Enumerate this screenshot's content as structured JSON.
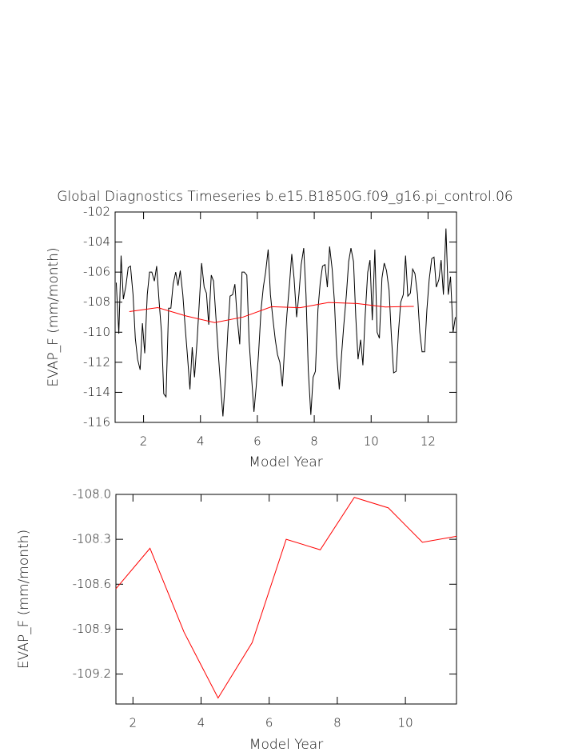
{
  "chart_data": [
    {
      "type": "line",
      "title": "Global Diagnostics Timeseries b.e15.B1850G.f09_g16.pi_control.06",
      "xlabel": "Model Year",
      "ylabel": "EVAP_F (mm/month)",
      "xlim": [
        1,
        13
      ],
      "xticks": [
        2,
        4,
        6,
        8,
        10,
        12
      ],
      "ylim": [
        -116,
        -102
      ],
      "yticks": [
        -116,
        -114,
        -112,
        -110,
        -108,
        -106,
        -104,
        -102
      ],
      "series": [
        {
          "color": "#000000",
          "x": [
            1.04,
            1.13,
            1.21,
            1.29,
            1.38,
            1.46,
            1.54,
            1.63,
            1.71,
            1.79,
            1.88,
            1.96,
            2.04,
            2.13,
            2.21,
            2.29,
            2.38,
            2.46,
            2.54,
            2.63,
            2.71,
            2.79,
            2.88,
            2.96,
            3.04,
            3.13,
            3.21,
            3.29,
            3.38,
            3.46,
            3.54,
            3.63,
            3.71,
            3.79,
            3.88,
            3.96,
            4.04,
            4.13,
            4.21,
            4.29,
            4.38,
            4.46,
            4.54,
            4.63,
            4.71,
            4.79,
            4.88,
            4.96,
            5.04,
            5.13,
            5.21,
            5.29,
            5.38,
            5.46,
            5.54,
            5.63,
            5.71,
            5.79,
            5.88,
            5.96,
            6.04,
            6.13,
            6.21,
            6.29,
            6.38,
            6.46,
            6.54,
            6.63,
            6.71,
            6.79,
            6.88,
            6.96,
            7.04,
            7.13,
            7.21,
            7.29,
            7.38,
            7.46,
            7.54,
            7.63,
            7.71,
            7.79,
            7.88,
            7.96,
            8.04,
            8.13,
            8.21,
            8.29,
            8.38,
            8.46,
            8.54,
            8.63,
            8.71,
            8.79,
            8.88,
            8.96,
            9.04,
            9.13,
            9.21,
            9.29,
            9.38,
            9.46,
            9.54,
            9.63,
            9.71,
            9.79,
            9.88,
            9.96,
            10.04,
            10.13,
            10.21,
            10.29,
            10.38,
            10.46,
            10.54,
            10.63,
            10.71,
            10.79,
            10.88,
            10.96,
            11.04,
            11.13,
            11.21,
            11.29,
            11.38,
            11.46,
            11.54,
            11.63,
            11.71,
            11.79,
            11.88,
            11.96,
            12.04,
            12.13,
            12.21,
            12.29,
            12.38,
            12.46,
            12.54,
            12.63,
            12.71,
            12.79,
            12.88,
            12.96
          ],
          "values": [
            -106.7,
            -110.1,
            -104.9,
            -107.8,
            -106.9,
            -105.7,
            -105.6,
            -107.5,
            -110.4,
            -111.8,
            -112.5,
            -109.4,
            -111.4,
            -107.5,
            -106.0,
            -106.0,
            -106.6,
            -105.6,
            -107.8,
            -110.0,
            -114.1,
            -114.3,
            -108.4,
            -108.4,
            -106.8,
            -106.0,
            -106.9,
            -105.9,
            -107.5,
            -109.6,
            -111.5,
            -113.8,
            -111.0,
            -113.0,
            -110.6,
            -108.0,
            -105.4,
            -107.0,
            -107.4,
            -109.5,
            -106.2,
            -106.6,
            -108.9,
            -111.5,
            -113.6,
            -115.6,
            -113.0,
            -110.0,
            -107.6,
            -107.5,
            -106.8,
            -109.0,
            -110.8,
            -106.0,
            -106.0,
            -106.2,
            -110.6,
            -112.8,
            -115.3,
            -113.6,
            -111.5,
            -108.5,
            -107.0,
            -106.0,
            -104.5,
            -107.5,
            -109.0,
            -110.5,
            -111.5,
            -112.0,
            -113.6,
            -111.0,
            -108.8,
            -106.8,
            -104.8,
            -106.4,
            -109.0,
            -107.5,
            -105.5,
            -104.4,
            -107.5,
            -112.5,
            -115.5,
            -113.0,
            -112.6,
            -108.5,
            -106.7,
            -105.6,
            -105.5,
            -107.0,
            -104.3,
            -105.8,
            -108.0,
            -111.5,
            -113.8,
            -111.5,
            -109.5,
            -107.5,
            -105.3,
            -104.4,
            -105.3,
            -109.0,
            -111.8,
            -110.5,
            -112.2,
            -108.9,
            -106.0,
            -105.2,
            -109.2,
            -104.5,
            -110.0,
            -110.4,
            -106.4,
            -105.4,
            -105.9,
            -107.2,
            -110.2,
            -112.7,
            -112.6,
            -110.0,
            -108.0,
            -107.5,
            -104.9,
            -107.6,
            -107.4,
            -105.8,
            -106.1,
            -107.5,
            -110.0,
            -111.3,
            -111.3,
            -108.5,
            -106.5,
            -105.1,
            -105.0,
            -107.0,
            -106.5,
            -105.2,
            -107.5,
            -103.1,
            -107.5,
            -106.3,
            -110.0,
            -109.0
          ]
        },
        {
          "color": "#ff0000",
          "x": [
            1.5,
            2.5,
            3.5,
            4.5,
            5.5,
            6.5,
            7.5,
            8.5,
            9.5,
            10.5,
            11.5
          ],
          "values": [
            -108.63,
            -108.36,
            -108.92,
            -109.36,
            -108.99,
            -108.3,
            -108.37,
            -108.02,
            -108.09,
            -108.32,
            -108.28
          ]
        }
      ]
    },
    {
      "type": "line",
      "xlabel": "Model Year",
      "ylabel": "EVAP_F (mm/month)",
      "xlim": [
        1.5,
        11.5
      ],
      "xticks": [
        2,
        4,
        6,
        8,
        10
      ],
      "ylim": [
        -109.4,
        -108.0
      ],
      "yticks": [
        -109.2,
        -108.9,
        -108.6,
        -108.3,
        {
          "value": -108.0,
          "label": "-108.0"
        }
      ],
      "series": [
        {
          "color": "#ff0000",
          "x": [
            1.5,
            2.5,
            3.5,
            4.5,
            5.5,
            6.5,
            7.5,
            8.5,
            9.5,
            10.5,
            11.5
          ],
          "values": [
            -108.63,
            -108.36,
            -108.92,
            -109.36,
            -108.99,
            -108.3,
            -108.37,
            -108.02,
            -108.09,
            -108.32,
            -108.28
          ]
        }
      ]
    }
  ]
}
